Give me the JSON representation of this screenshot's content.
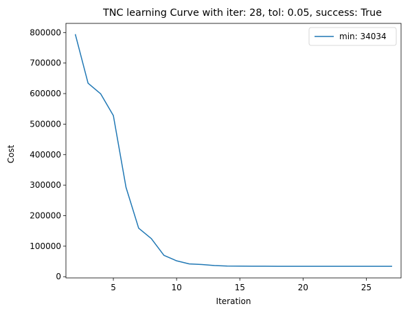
{
  "chart_data": {
    "type": "line",
    "title": "TNC learning Curve with iter: 28, tol: 0.05, success: True",
    "xlabel": "Iteration",
    "ylabel": "Cost",
    "xlim": [
      1.25,
      27.75
    ],
    "ylim": [
      -4000,
      830000
    ],
    "xticks": [
      5,
      10,
      15,
      20,
      25
    ],
    "yticks": [
      0,
      100000,
      200000,
      300000,
      400000,
      500000,
      600000,
      700000,
      800000
    ],
    "grid": false,
    "legend_position": "upper-right",
    "series": [
      {
        "name": "min: 34034",
        "color": "#1f77b4",
        "x": [
          2,
          3,
          4,
          5,
          6,
          7,
          8,
          9,
          10,
          11,
          12,
          13,
          14,
          15,
          16,
          17,
          18,
          19,
          20,
          21,
          22,
          23,
          24,
          25,
          26,
          27
        ],
        "y": [
          793000,
          634000,
          599000,
          528000,
          293000,
          159000,
          125000,
          70000,
          52000,
          42000,
          40000,
          36500,
          35000,
          34700,
          34300,
          34200,
          34100,
          34080,
          34060,
          34050,
          34045,
          34040,
          34038,
          34036,
          34035,
          34034
        ]
      }
    ]
  }
}
